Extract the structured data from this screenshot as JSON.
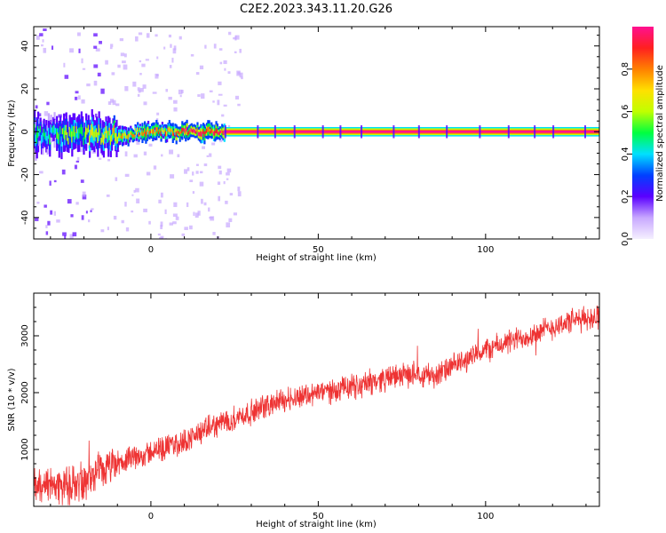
{
  "title": "C2E2.2023.343.11.20.G26",
  "colors": {
    "snr_line": "#ee3333",
    "axis": "#000000",
    "colormap": [
      "#f5f0ff",
      "#c8a8ff",
      "#5a00ff",
      "#0040ff",
      "#00e0ff",
      "#00ff40",
      "#c0ff00",
      "#ffe000",
      "#ff8000",
      "#ff2020",
      "#ff1090"
    ]
  },
  "chart_data": [
    {
      "type": "heatmap",
      "xlabel": "Height of straight line (km)",
      "ylabel": "Frequency (Hz)",
      "xlim": [
        -35,
        134
      ],
      "ylim": [
        -50,
        49
      ],
      "xticks": [
        0,
        50,
        100
      ],
      "yticks": [
        -40,
        -20,
        0,
        20,
        40
      ],
      "colorbar": {
        "label": "Normalized spectral amplitude",
        "range": [
          0.0,
          1.0
        ],
        "ticks": [
          "0.0",
          "0.2",
          "0.4",
          "0.6",
          "0.8"
        ]
      },
      "signal": {
        "description_values": "dominant frequency track near 0 Hz; noisy for heights < 22 km, strong and stable above",
        "noisy_until_km": 22,
        "center_frequency_hz": 0
      }
    },
    {
      "type": "line",
      "xlabel": "Height of straight line (km)",
      "ylabel": "SNR (10 * v/v)",
      "xlim": [
        -35,
        134
      ],
      "ylim": [
        0,
        3750
      ],
      "xticks": [
        0,
        50,
        100
      ],
      "yticks": [
        1000,
        2000,
        3000
      ],
      "series": [
        {
          "x": [
            -35,
            -30,
            -25,
            -20,
            -15,
            -10,
            -5,
            0,
            5,
            10,
            15,
            20,
            25,
            30,
            35,
            40,
            45,
            50,
            55,
            60,
            65,
            70,
            75,
            80,
            85,
            90,
            95,
            100,
            105,
            110,
            115,
            120,
            125,
            130,
            134
          ],
          "y": [
            350,
            400,
            380,
            420,
            600,
            750,
            850,
            950,
            1050,
            1150,
            1300,
            1450,
            1550,
            1650,
            1780,
            1880,
            1950,
            2000,
            2050,
            2100,
            2180,
            2250,
            2300,
            2350,
            2300,
            2450,
            2600,
            2750,
            2850,
            2950,
            3050,
            3150,
            3250,
            3300,
            3350
          ]
        }
      ]
    }
  ]
}
